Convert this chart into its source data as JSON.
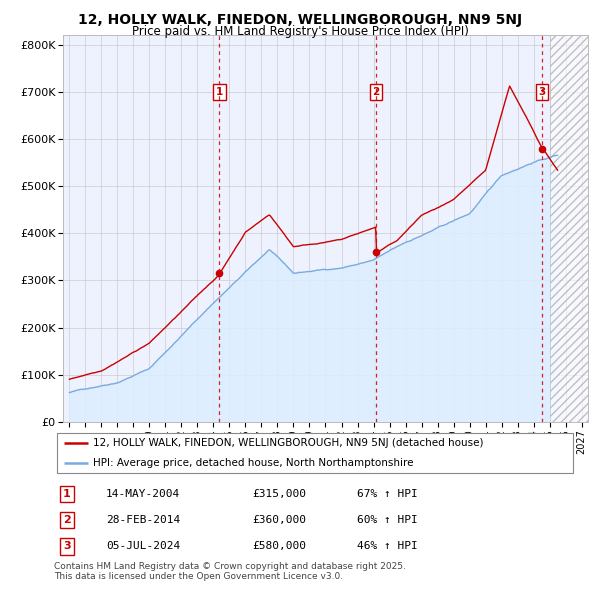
{
  "title": "12, HOLLY WALK, FINEDON, WELLINGBOROUGH, NN9 5NJ",
  "subtitle": "Price paid vs. HM Land Registry's House Price Index (HPI)",
  "ylabel_ticks": [
    "£0",
    "£100K",
    "£200K",
    "£300K",
    "£400K",
    "£500K",
    "£600K",
    "£700K",
    "£800K"
  ],
  "ytick_values": [
    0,
    100000,
    200000,
    300000,
    400000,
    500000,
    600000,
    700000,
    800000
  ],
  "ylim": [
    0,
    820000
  ],
  "xlim_start": 1994.6,
  "xlim_end": 2027.4,
  "red_color": "#cc0000",
  "blue_color": "#7aaadd",
  "blue_fill_color": "#ddeeff",
  "transactions": [
    {
      "num": 1,
      "date": "14-MAY-2004",
      "price": 315000,
      "year": 2004.37,
      "pct": "67%",
      "dir": "↑"
    },
    {
      "num": 2,
      "date": "28-FEB-2014",
      "price": 360000,
      "year": 2014.16,
      "pct": "60%",
      "dir": "↑"
    },
    {
      "num": 3,
      "date": "05-JUL-2024",
      "price": 580000,
      "year": 2024.51,
      "pct": "46%",
      "dir": "↑"
    }
  ],
  "legend_line1": "12, HOLLY WALK, FINEDON, WELLINGBOROUGH, NN9 5NJ (detached house)",
  "legend_line2": "HPI: Average price, detached house, North Northamptonshire",
  "footnote1": "Contains HM Land Registry data © Crown copyright and database right 2025.",
  "footnote2": "This data is licensed under the Open Government Licence v3.0.",
  "hatch_start": 2025.0,
  "background_color": "#ffffff",
  "plot_bg_color": "#eef2ff"
}
